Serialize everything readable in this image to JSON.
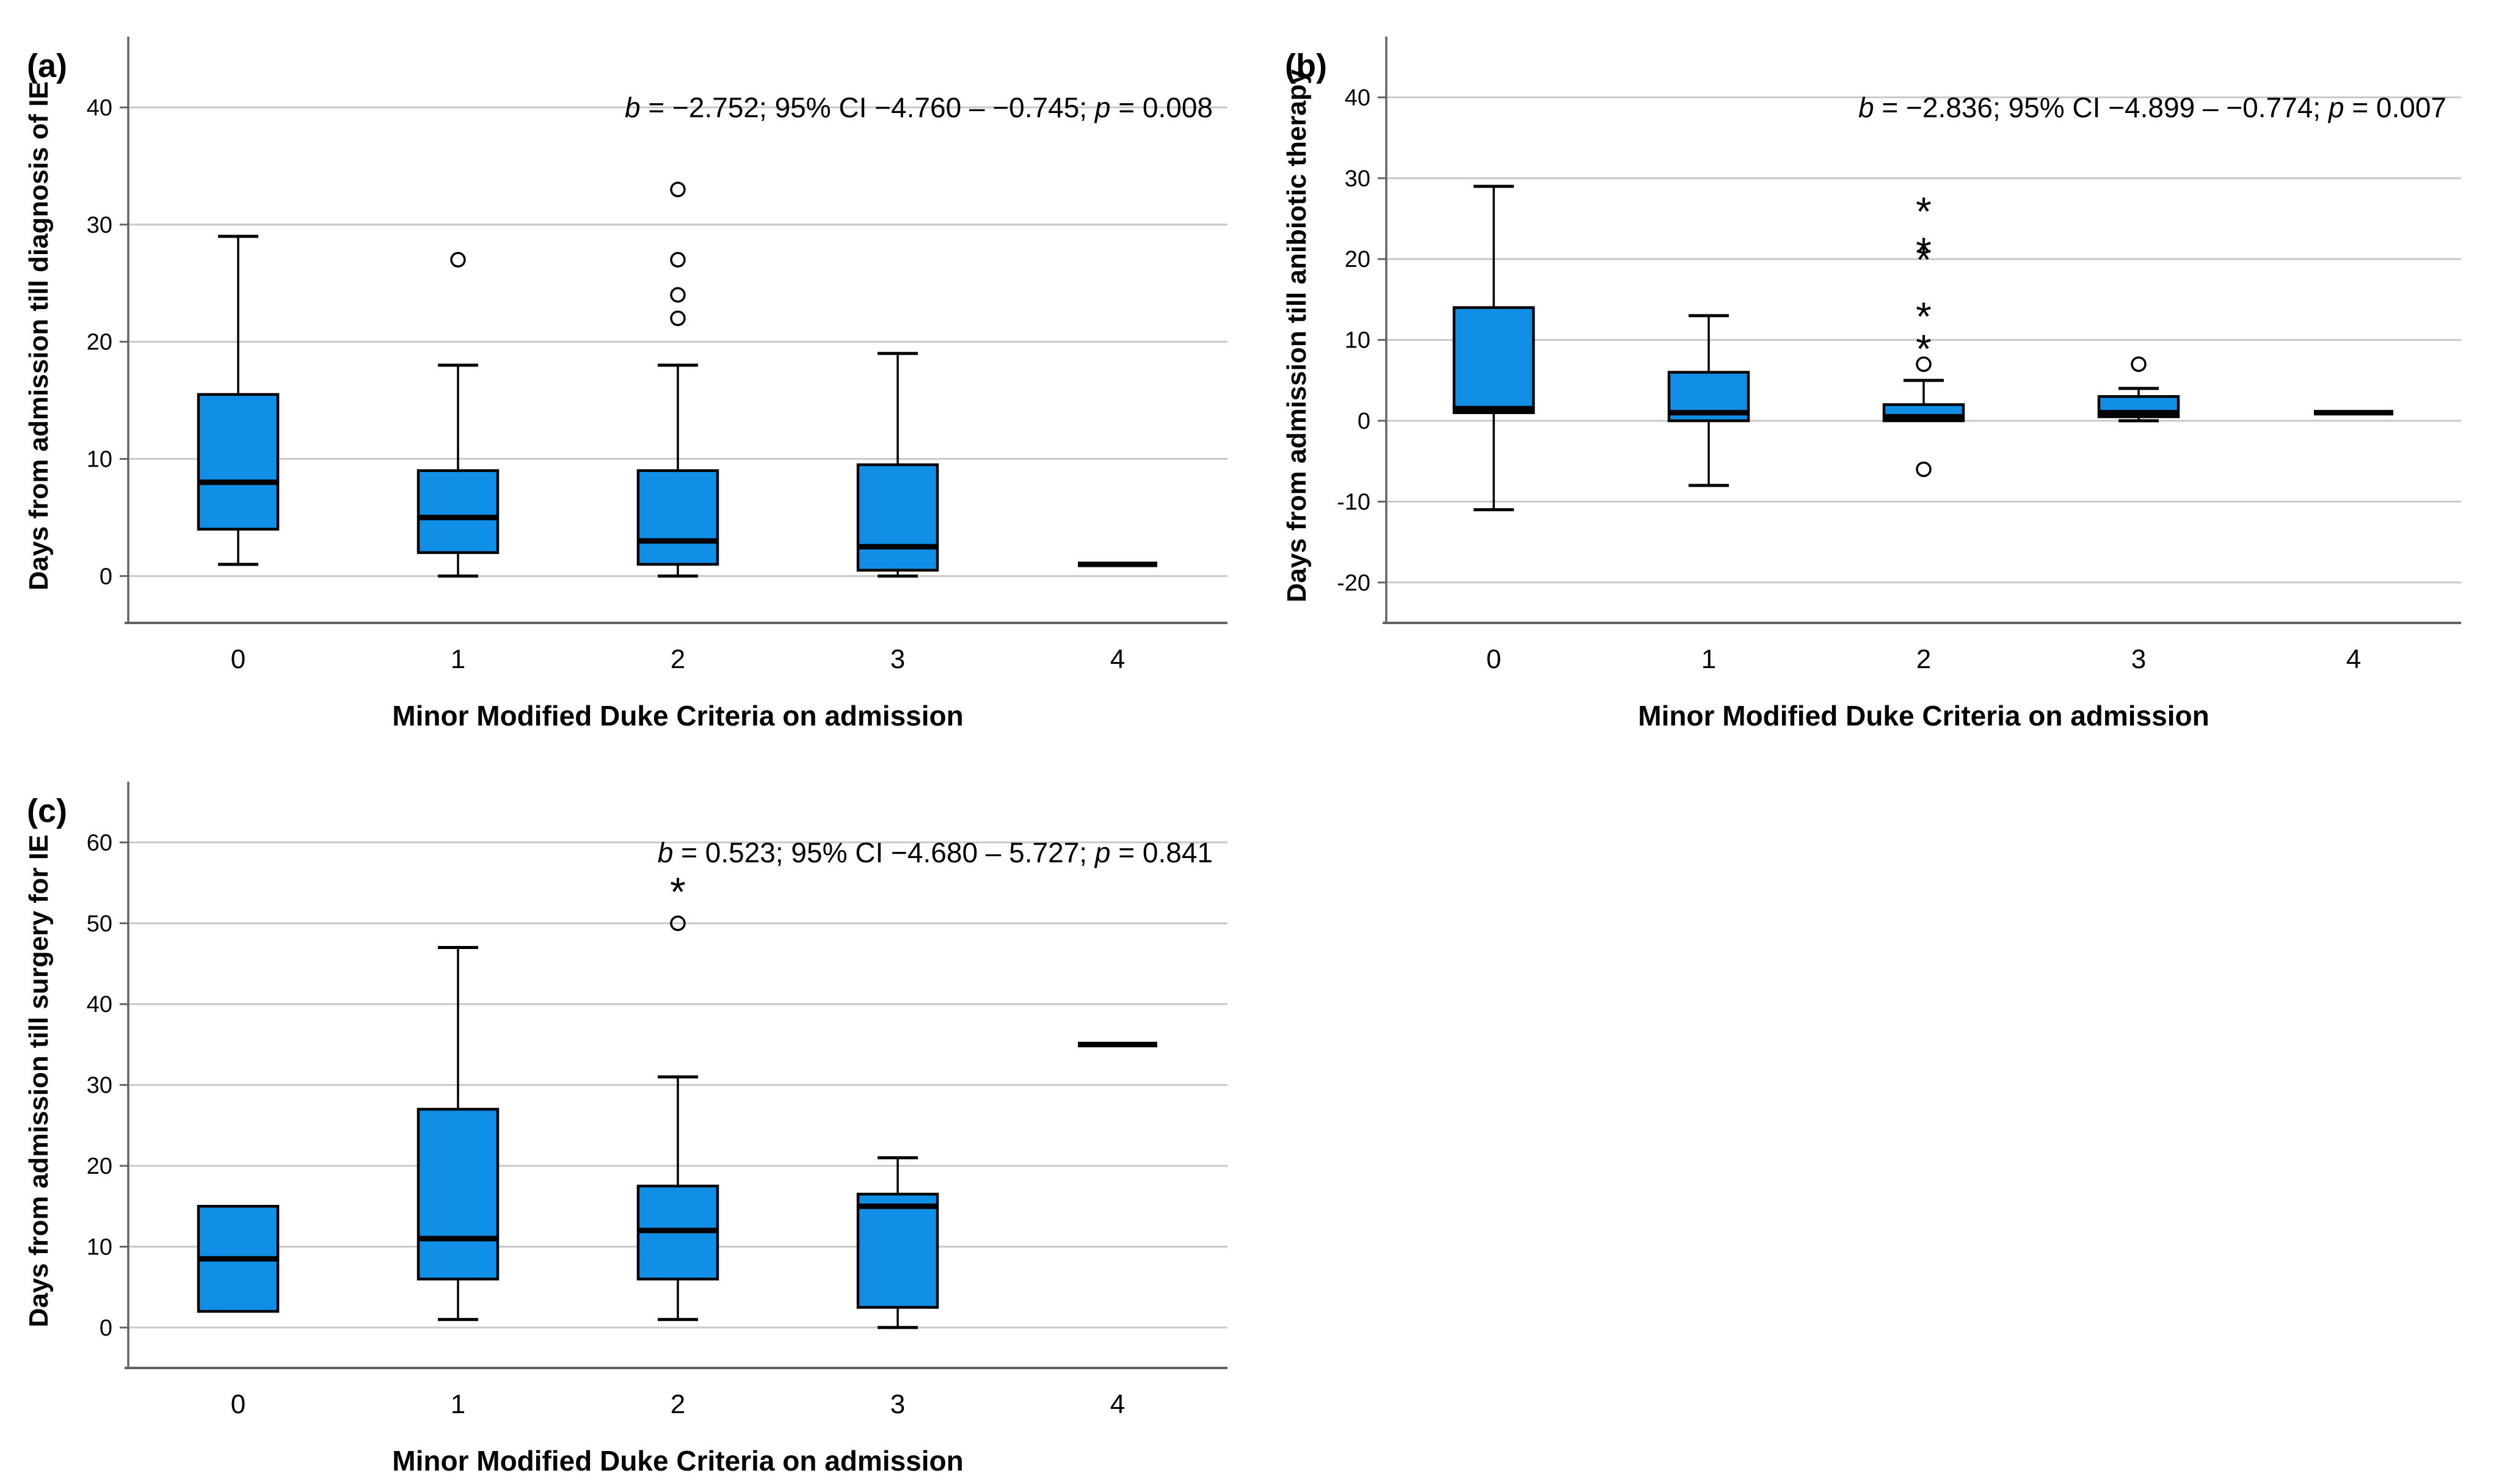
{
  "figure": {
    "colors": {
      "box_fill": "#118ee5",
      "box_stroke": "#000000",
      "median": "#000000",
      "whisker": "#000000",
      "grid": "#c8c8c8",
      "axis": "#646464",
      "text": "#000000",
      "background": "#ffffff"
    }
  },
  "chart_data": [
    {
      "type": "boxplot",
      "panel_label": "(a)",
      "ylabel": "Days from admission till diagnosis of IE",
      "xlabel": "Minor Modified Duke Criteria on admission",
      "annotation": "b = −2.752; 95% CI −4.760 – −0.745; p = 0.008",
      "categories": [
        "0",
        "1",
        "2",
        "3",
        "4"
      ],
      "yticks": [
        0,
        10,
        20,
        30,
        40
      ],
      "ylim": [
        -4,
        45
      ],
      "grid": true,
      "legend": "none",
      "boxes": [
        {
          "category": "0",
          "min": 1,
          "q1": 4,
          "median": 8,
          "q3": 15.5,
          "max": 29,
          "outliers": [],
          "extremes": []
        },
        {
          "category": "1",
          "min": 0,
          "q1": 2,
          "median": 5,
          "q3": 9,
          "max": 18,
          "outliers": [
            27
          ],
          "extremes": []
        },
        {
          "category": "2",
          "min": 0,
          "q1": 1,
          "median": 3,
          "q3": 9,
          "max": 18,
          "outliers": [
            22,
            24,
            27,
            33
          ],
          "extremes": []
        },
        {
          "category": "3",
          "min": 0,
          "q1": 0.5,
          "median": 2.5,
          "q3": 9.5,
          "max": 19,
          "outliers": [],
          "extremes": []
        },
        {
          "category": "4",
          "single_value": 1,
          "outliers": [],
          "extremes": []
        }
      ]
    },
    {
      "type": "boxplot",
      "panel_label": "(b)",
      "ylabel": "Days from admission till anibiotic therapy",
      "xlabel": "Minor Modified Duke Criteria on admission",
      "annotation": "b = −2.836; 95% CI −4.899 – −0.774; p = 0.007",
      "categories": [
        "0",
        "1",
        "2",
        "3",
        "4"
      ],
      "yticks": [
        -20,
        -10,
        0,
        10,
        20,
        30,
        40
      ],
      "ylim": [
        -25,
        46
      ],
      "grid": true,
      "legend": "none",
      "boxes": [
        {
          "category": "0",
          "min": -11,
          "q1": 1,
          "median": 1.5,
          "q3": 14,
          "max": 29,
          "outliers": [],
          "extremes": []
        },
        {
          "category": "1",
          "min": -8,
          "q1": 0,
          "median": 1,
          "q3": 6,
          "max": 13,
          "outliers": [],
          "extremes": []
        },
        {
          "category": "2",
          "min": 0,
          "q1": 0,
          "median": 0.5,
          "q3": 2,
          "max": 5,
          "outliers": [
            7,
            -6
          ],
          "extremes": [
            9,
            13,
            20,
            21,
            26
          ]
        },
        {
          "category": "3",
          "min": 0,
          "q1": 0.5,
          "median": 1,
          "q3": 3,
          "max": 4,
          "outliers": [
            7
          ],
          "extremes": []
        },
        {
          "category": "4",
          "single_value": 1,
          "outliers": [],
          "extremes": []
        }
      ]
    },
    {
      "type": "boxplot",
      "panel_label": "(c)",
      "ylabel": "Days from admission till surgery for IE",
      "xlabel": "Minor Modified Duke Criteria on admission",
      "annotation": "b = 0.523; 95% CI −4.680 – 5.727; p = 0.841",
      "categories": [
        "0",
        "1",
        "2",
        "3",
        "4"
      ],
      "yticks": [
        0,
        10,
        20,
        30,
        40,
        50,
        60
      ],
      "ylim": [
        -5,
        66
      ],
      "grid": true,
      "legend": "none",
      "boxes": [
        {
          "category": "0",
          "min": 2,
          "q1": 2,
          "median": 8.5,
          "q3": 15,
          "max": 15,
          "outliers": [],
          "extremes": []
        },
        {
          "category": "1",
          "min": 1,
          "q1": 6,
          "median": 11,
          "q3": 27,
          "max": 47,
          "outliers": [],
          "extremes": []
        },
        {
          "category": "2",
          "min": 1,
          "q1": 6,
          "median": 12,
          "q3": 17.5,
          "max": 31,
          "outliers": [
            50
          ],
          "extremes": [
            54
          ]
        },
        {
          "category": "3",
          "min": 0,
          "q1": 2.5,
          "median": 15,
          "q3": 16.5,
          "max": 21,
          "outliers": [],
          "extremes": []
        },
        {
          "category": "4",
          "single_value": 35,
          "outliers": [],
          "extremes": []
        }
      ]
    }
  ]
}
